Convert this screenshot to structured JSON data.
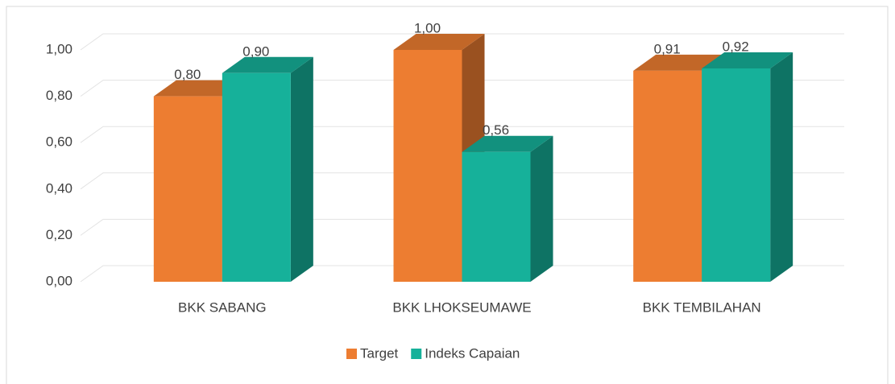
{
  "chart_data": {
    "type": "bar3d",
    "categories": [
      "BKK SABANG",
      "BKK LHOKSEUMAWE",
      "BKK TEMBILAHAN"
    ],
    "series": [
      {
        "name": "Target",
        "color": "#ed7d31",
        "values": [
          0.8,
          1.0,
          0.91
        ],
        "value_labels": [
          "0,80",
          "1,00",
          "0,91"
        ]
      },
      {
        "name": "Indeks Capaian",
        "color": "#16b19a",
        "values": [
          0.9,
          0.56,
          0.92
        ],
        "value_labels": [
          "0,90",
          "0,56",
          "0,92"
        ]
      }
    ],
    "ylim": [
      0,
      1
    ],
    "yticks": [
      {
        "value": 0,
        "label": "0,00"
      },
      {
        "value": 0.2,
        "label": "0,20"
      },
      {
        "value": 0.4,
        "label": "0,40"
      },
      {
        "value": 0.6,
        "label": "0,60"
      },
      {
        "value": 0.8,
        "label": "0,80"
      },
      {
        "value": 1.0,
        "label": "1,00"
      }
    ],
    "grid": true,
    "legend": "bottom"
  }
}
